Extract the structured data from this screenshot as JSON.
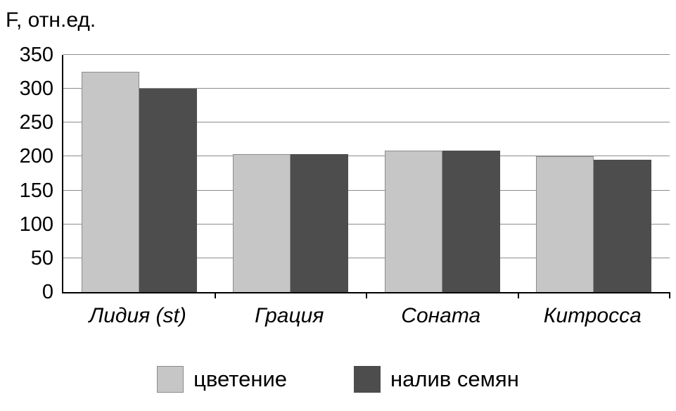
{
  "chart_data": {
    "type": "bar",
    "title": "",
    "ylabel": "F, отн.ед.",
    "xlabel": "",
    "categories": [
      "Лидия (st)",
      "Грация",
      "Соната",
      "Китросса"
    ],
    "series": [
      {
        "name": "цветение",
        "color": "#c6c6c6",
        "border": "#8c8c8c",
        "values": [
          325,
          204,
          209,
          200
        ]
      },
      {
        "name": "налив семян",
        "color": "#4d4d4d",
        "border": "#4d4d4d",
        "values": [
          300,
          204,
          209,
          195
        ]
      }
    ],
    "ylim": [
      0,
      350
    ],
    "yticks": [
      0,
      50,
      100,
      150,
      200,
      250,
      300,
      350
    ],
    "grid": true,
    "legend_position": "bottom"
  }
}
